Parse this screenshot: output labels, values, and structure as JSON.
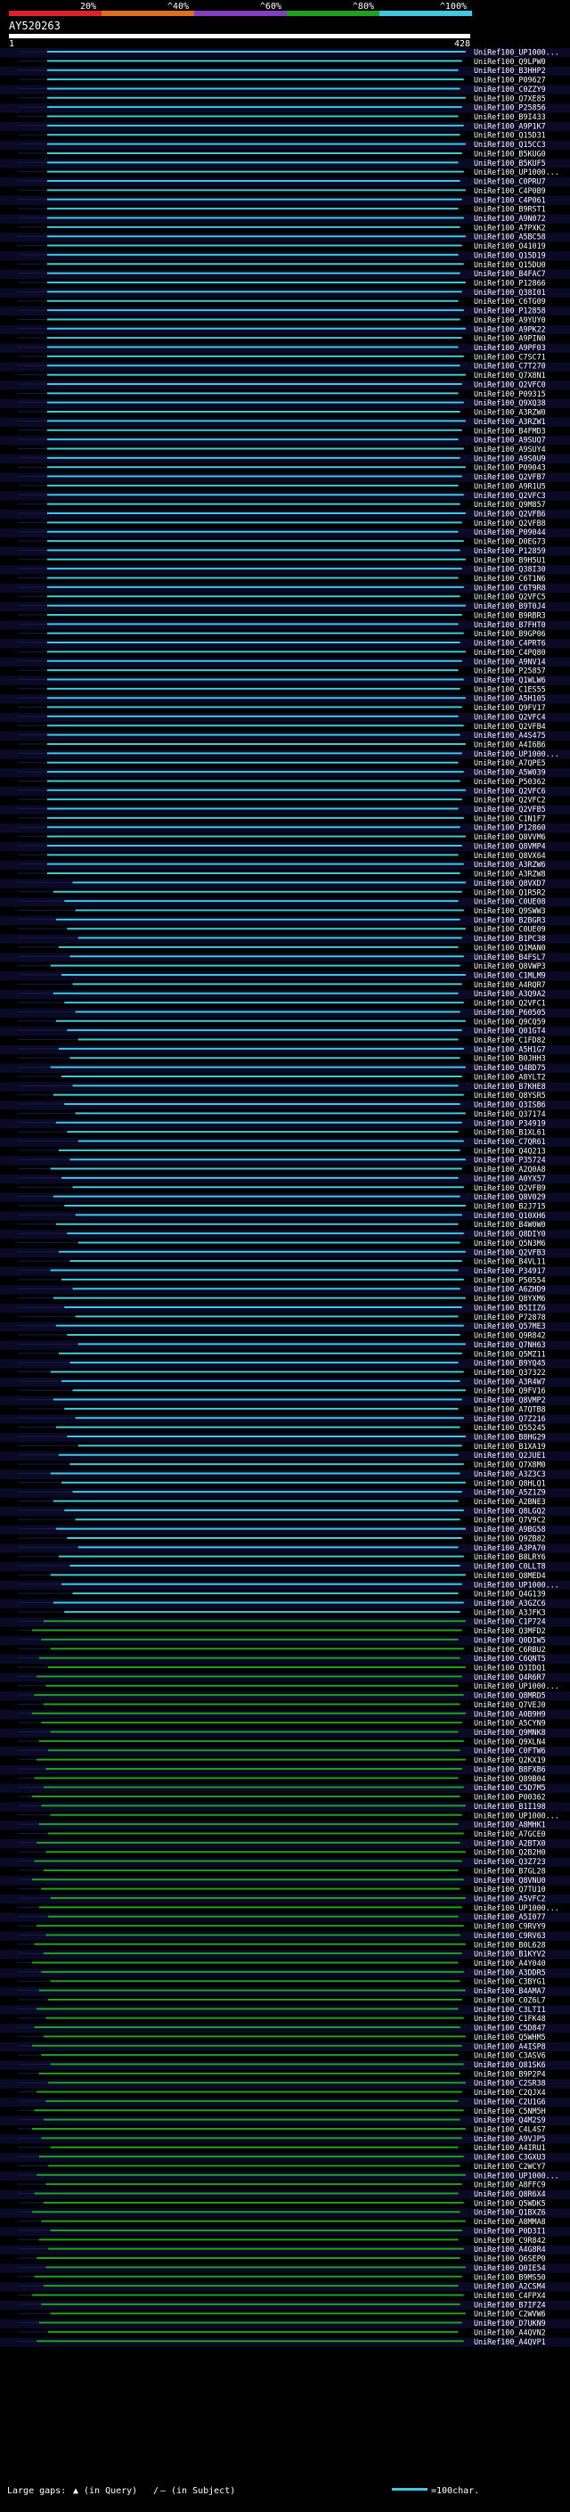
{
  "chart_data": {
    "type": "alignment-hit-map",
    "identity_scale": {
      "labels": [
        "20%",
        "^40%",
        "^60%",
        "^80%",
        "^100%"
      ],
      "colors": [
        "#e0202a",
        "#e07020",
        "#8040c0",
        "#20a020",
        "#40c8e0"
      ]
    },
    "query": {
      "id": "AY520263",
      "start": 1,
      "end": 428
    },
    "hit_ids": [
      "UniRef100_UP1000...",
      "UniRef100_Q9LPW0",
      "UniRef100_B3HHP2",
      "UniRef100_P09627",
      "UniRef100_C0ZZY9",
      "UniRef100_Q7XE85",
      "UniRef100_P25856",
      "UniRef100_B9I433",
      "UniRef100_A9P1K7",
      "UniRef100_Q15D31",
      "UniRef100_Q15CC3",
      "UniRef100_B5KUG0",
      "UniRef100_B5KUF5",
      "UniRef100_UP1000...",
      "UniRef100_C0PRU7",
      "UniRef100_C4P0B9",
      "UniRef100_C4P061",
      "UniRef100_B9RST1",
      "UniRef100_A9N072",
      "UniRef100_A7PXK2",
      "UniRef100_A5BC58",
      "UniRef100_O41019",
      "UniRef100_Q15D19",
      "UniRef100_Q15DU0",
      "UniRef100_B4FAC7",
      "UniRef100_P12866",
      "UniRef100_Q38I01",
      "UniRef100_C6TG09",
      "UniRef100_P12858",
      "UniRef100_A9YUY0",
      "UniRef100_A9PK22",
      "UniRef100_A9PIN0",
      "UniRef100_A9PF03",
      "UniRef100_C7SC71",
      "UniRef100_C7T270",
      "UniRef100_Q7X8N1",
      "UniRef100_Q2VFC0",
      "UniRef100_P09315",
      "UniRef100_Q9XQ38",
      "UniRef100_A3RZW0",
      "UniRef100_A3RZW1",
      "UniRef100_B4FMD3",
      "UniRef100_A9SUQ7",
      "UniRef100_A9SUY4",
      "UniRef100_A9S0U9",
      "UniRef100_P09043",
      "UniRef100_Q2VFB7",
      "UniRef100_A9R1U5",
      "UniRef100_Q2VFC3",
      "UniRef100_Q9M857",
      "UniRef100_Q2VFB6",
      "UniRef100_Q2VFB8",
      "UniRef100_P09044",
      "UniRef100_D0EG73",
      "UniRef100_P12859",
      "UniRef100_B9H5U1",
      "UniRef100_Q38I30",
      "UniRef100_C6T1N6",
      "UniRef100_C6T9R8",
      "UniRef100_Q2VFC5",
      "UniRef100_B9T0J4",
      "UniRef100_B9RBR3",
      "UniRef100_B7FHT0",
      "UniRef100_B9GP06",
      "UniRef100_C4PRT6",
      "UniRef100_C4PQ80",
      "UniRef100_A9NV14",
      "UniRef100_P25857",
      "UniRef100_Q1WLW6",
      "UniRef100_C1ES55",
      "UniRef100_A5H105",
      "UniRef100_Q9FV17",
      "UniRef100_Q2VFC4",
      "UniRef100_Q2VFB4",
      "UniRef100_A4S475",
      "UniRef100_A4I6B6",
      "UniRef100_UP1000...",
      "UniRef100_A7QPE5",
      "UniRef100_A5W039",
      "UniRef100_P50362",
      "UniRef100_Q2VFC6",
      "UniRef100_Q2VFC2",
      "UniRef100_Q2VFB5",
      "UniRef100_C1N1F7",
      "UniRef100_P12860",
      "UniRef100_Q8VVM6",
      "UniRef100_Q8VMP4",
      "UniRef100_Q8VX64",
      "UniRef100_A3RZW6",
      "UniRef100_A3RZW8",
      "UniRef100_Q8VXD7",
      "UniRef100_Q1R5R2",
      "UniRef100_C0UE08",
      "UniRef100_Q9SWW3",
      "UniRef100_B2BGR3",
      "UniRef100_C0UE09",
      "UniRef100_B1PC38",
      "UniRef100_Q1MAN0",
      "UniRef100_B4FSL7",
      "UniRef100_Q8VWP3",
      "UniRef100_C1MLM9",
      "UniRef100_A4RQR7",
      "UniRef100_A3Q9A2",
      "UniRef100_Q2VFC1",
      "UniRef100_P60505",
      "UniRef100_Q9CQ59",
      "UniRef100_Q01GT4",
      "UniRef100_C1FD82",
      "UniRef100_A5H1G7",
      "UniRef100_B0JHH3",
      "UniRef100_Q4BD75",
      "UniRef100_A8YLT2",
      "UniRef100_B7KHE8",
      "UniRef100_Q8YSR5",
      "UniRef100_Q3ISB6",
      "UniRef100_Q37174",
      "UniRef100_P34919",
      "UniRef100_B1XL61",
      "UniRef100_C7QR61",
      "UniRef100_Q4Q213",
      "UniRef100_P35724",
      "UniRef100_A2Q0A8",
      "UniRef100_A0YX57",
      "UniRef100_Q2VFB9",
      "UniRef100_Q8V029",
      "UniRef100_B2J715",
      "UniRef100_Q10XH6",
      "UniRef100_B4W0W0",
      "UniRef100_Q8DIY0",
      "UniRef100_Q5N3M6",
      "UniRef100_Q2VFB3",
      "UniRef100_B4VL11",
      "UniRef100_P34917",
      "UniRef100_P50554",
      "UniRef100_A6ZHD9",
      "UniRef100_Q8YXM6",
      "UniRef100_B5IIZ6",
      "UniRef100_P72878",
      "UniRef100_Q57ME3",
      "UniRef100_Q9R842",
      "UniRef100_Q7NH63",
      "UniRef100_Q5MZ11",
      "UniRef100_B9YQ45",
      "UniRef100_Q37322",
      "UniRef100_A3R4W7",
      "UniRef100_Q9FV16",
      "UniRef100_Q8VMP2",
      "UniRef100_A7QTB8",
      "UniRef100_Q7Z216",
      "UniRef100_Q55245",
      "UniRef100_B8HG29",
      "UniRef100_B1XA19",
      "UniRef100_Q2JUE1",
      "UniRef100_Q7X8M0",
      "UniRef100_A3Z3C3",
      "UniRef100_Q8HLQ1",
      "UniRef100_A5Z1Z9",
      "UniRef100_A2BNE3",
      "UniRef100_Q8LGQ2",
      "UniRef100_Q7V9C2",
      "UniRef100_A9BG58",
      "UniRef100_Q9ZB82",
      "UniRef100_A3PA70",
      "UniRef100_B8LRY6",
      "UniRef100_C0LLT8",
      "UniRef100_Q8MED4",
      "UniRef100_UP1000...",
      "UniRef100_Q4G139",
      "UniRef100_A3GZC6",
      "UniRef100_A3JFK3",
      "UniRef100_C1P724",
      "UniRef100_Q3MFD2",
      "UniRef100_Q0DIW5",
      "UniRef100_C6RBU2",
      "UniRef100_C6QNT5",
      "UniRef100_Q3IDQ1",
      "UniRef100_Q4R6R7",
      "UniRef100_UP1000...",
      "UniRef100_Q8MRD5",
      "UniRef100_Q7VEJ0",
      "UniRef100_A0B9H9",
      "UniRef100_A5CYN9",
      "UniRef100_Q9MNK8",
      "UniRef100_Q9XLN4",
      "UniRef100_C0FTW6",
      "UniRef100_Q2KX19",
      "UniRef100_B8FXB6",
      "UniRef100_Q89B04",
      "UniRef100_C5D7M5",
      "UniRef100_P00362",
      "UniRef100_B1I198",
      "UniRef100_UP1000...",
      "UniRef100_A8MHK1",
      "UniRef100_A7GCE0",
      "UniRef100_A2BTX0",
      "UniRef100_Q2B2H0",
      "UniRef100_Q3Z723",
      "UniRef100_B7GL28",
      "UniRef100_Q8VNU0",
      "UniRef100_Q7TU10",
      "UniRef100_A5VFC2",
      "UniRef100_UP1000...",
      "UniRef100_A5I077",
      "UniRef100_C9RVY9",
      "UniRef100_C9RV63",
      "UniRef100_B0L628",
      "UniRef100_B1KYV2",
      "UniRef100_A4Y040",
      "UniRef100_A3DDR5",
      "UniRef100_C3BYG1",
      "UniRef100_B4AMA7",
      "UniRef100_C0Z6L7",
      "UniRef100_C3LTI1",
      "UniRef100_C1FK48",
      "UniRef100_C5D847",
      "UniRef100_Q5WHM5",
      "UniRef100_A4ISP8",
      "UniRef100_C3ASV6",
      "UniRef100_Q81SK6",
      "UniRef100_B9P2P4",
      "UniRef100_C2SR38",
      "UniRef100_C2QJX4",
      "UniRef100_C2U1G6",
      "UniRef100_C5NM5H",
      "UniRef100_Q4M2S9",
      "UniRef100_C4L4S7",
      "UniRef100_A9VJP5",
      "UniRef100_A4IRU1",
      "UniRef100_C3GXU3",
      "UniRef100_C2WCY7",
      "UniRef100_UP1000...",
      "UniRef100_A8FFC9",
      "UniRef100_Q8R6X4",
      "UniRef100_Q5WDK5",
      "UniRef100_Q1BXZ6",
      "UniRef100_A8MMA8",
      "UniRef100_P0D3I1",
      "UniRef100_C9R842",
      "UniRef100_A4G8R4",
      "UniRef100_Q6SEP0",
      "UniRef100_Q0IE54",
      "UniRef100_B9MS50",
      "UniRef100_A2CSM4",
      "UniRef100_C4FPX4",
      "UniRef100_B7IFZ4",
      "UniRef100_C2WVW6",
      "UniRef100_D7UKN9",
      "UniRef100_A4QVN2",
      "UniRef100_A4QVP1"
    ],
    "legend": {
      "large_gaps_label": "Large gaps:",
      "in_query": "(in Query)",
      "in_subject": "(in Subject)",
      "scale_label": "=100char."
    }
  }
}
